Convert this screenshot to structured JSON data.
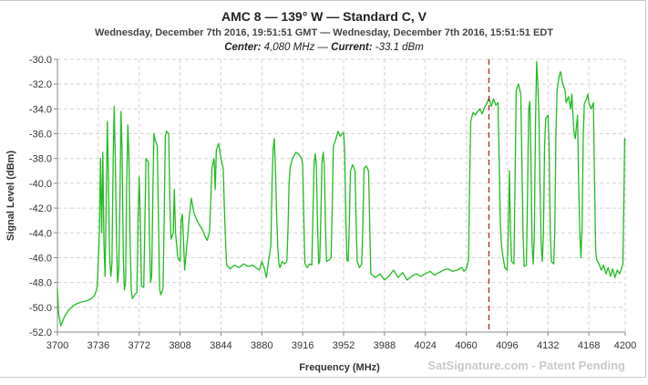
{
  "chart_data": {
    "type": "line",
    "title": "AMC 8 — 139° W — Standard C, V",
    "subtitle": "Wednesday, December 7th 2016, 19:51:51 GMT — Wednesday, December 7th 2016, 15:51:51 EDT",
    "info": {
      "center_label": "Center:",
      "center_value": "4,080 MHz",
      "separator": "—",
      "current_label": "Current:",
      "current_value": "-33.1 dBm"
    },
    "xlabel": "Frequency (MHz)",
    "ylabel": "Signal Level (dBm)",
    "xlim": [
      3700,
      4200
    ],
    "ylim": [
      -52.0,
      -30.0
    ],
    "x_ticks": [
      "3700",
      "3736",
      "3772",
      "3808",
      "3844",
      "3880",
      "3916",
      "3952",
      "3988",
      "4024",
      "4060",
      "4096",
      "4132",
      "4168",
      "4200"
    ],
    "x_tick_values": [
      3700,
      3736,
      3772,
      3808,
      3844,
      3880,
      3916,
      3952,
      3988,
      4024,
      4060,
      4096,
      4132,
      4168,
      4200
    ],
    "y_ticks": [
      "-30.0",
      "-32.0",
      "-34.0",
      "-36.0",
      "-38.0",
      "-40.0",
      "-42.0",
      "-44.0",
      "-46.0",
      "-48.0",
      "-50.0",
      "-52.0"
    ],
    "y_tick_values": [
      -30,
      -32,
      -34,
      -36,
      -38,
      -40,
      -42,
      -44,
      -46,
      -48,
      -50,
      -52
    ],
    "marker_x": 4080,
    "grid": true,
    "series": [
      {
        "name": "Signal Level",
        "color": "#22bb22",
        "points": [
          [
            3700,
            -48.5
          ],
          [
            3701,
            -50.5
          ],
          [
            3703,
            -51.5
          ],
          [
            3706,
            -50.8
          ],
          [
            3710,
            -50.2
          ],
          [
            3715,
            -49.8
          ],
          [
            3720,
            -49.6
          ],
          [
            3725,
            -49.5
          ],
          [
            3730,
            -49.3
          ],
          [
            3733,
            -49.0
          ],
          [
            3735,
            -48.4
          ],
          [
            3737,
            -44.0
          ],
          [
            3738,
            -38.0
          ],
          [
            3739,
            -44.0
          ],
          [
            3740,
            -37.5
          ],
          [
            3741,
            -45.0
          ],
          [
            3742,
            -47.5
          ],
          [
            3743,
            -41.0
          ],
          [
            3744,
            -35.0
          ],
          [
            3745,
            -40.5
          ],
          [
            3746,
            -46.0
          ],
          [
            3747,
            -47.5
          ],
          [
            3748,
            -46.5
          ],
          [
            3749,
            -38.5
          ],
          [
            3750,
            -33.8
          ],
          [
            3751,
            -38.0
          ],
          [
            3752,
            -44.5
          ],
          [
            3753,
            -48.0
          ],
          [
            3754,
            -47.0
          ],
          [
            3755,
            -42.0
          ],
          [
            3756,
            -34.2
          ],
          [
            3757,
            -37.5
          ],
          [
            3758,
            -46.0
          ],
          [
            3759,
            -48.6
          ],
          [
            3760,
            -48.0
          ],
          [
            3761,
            -40.0
          ],
          [
            3762,
            -35.3
          ],
          [
            3763,
            -38.0
          ],
          [
            3764,
            -44.5
          ],
          [
            3765,
            -48.5
          ],
          [
            3766,
            -49.3
          ],
          [
            3768,
            -49.0
          ],
          [
            3770,
            -48.8
          ],
          [
            3771,
            -43.0
          ],
          [
            3772,
            -39.5
          ],
          [
            3773,
            -43.0
          ],
          [
            3774,
            -48.3
          ],
          [
            3776,
            -48.4
          ],
          [
            3777,
            -43.5
          ],
          [
            3778,
            -38.0
          ],
          [
            3780,
            -38.3
          ],
          [
            3781,
            -44.0
          ],
          [
            3782,
            -48.0
          ],
          [
            3783,
            -47.5
          ],
          [
            3784,
            -41.0
          ],
          [
            3785,
            -36.0
          ],
          [
            3786,
            -36.5
          ],
          [
            3788,
            -37.0
          ],
          [
            3789,
            -43.0
          ],
          [
            3790,
            -48.5
          ],
          [
            3791,
            -49.0
          ],
          [
            3793,
            -48.5
          ],
          [
            3794,
            -43.0
          ],
          [
            3795,
            -36.2
          ],
          [
            3796,
            -35.8
          ],
          [
            3798,
            -36.0
          ],
          [
            3799,
            -41.5
          ],
          [
            3800,
            -44.5
          ],
          [
            3802,
            -44.0
          ],
          [
            3803,
            -40.5
          ],
          [
            3804,
            -44.0
          ],
          [
            3806,
            -46.0
          ],
          [
            3808,
            -46.3
          ],
          [
            3809,
            -43.0
          ],
          [
            3810,
            -42.5
          ],
          [
            3811,
            -44.5
          ],
          [
            3812,
            -47.0
          ],
          [
            3813,
            -46.0
          ],
          [
            3815,
            -44.0
          ],
          [
            3816,
            -42.8
          ],
          [
            3818,
            -41.2
          ],
          [
            3820,
            -42.3
          ],
          [
            3822,
            -42.8
          ],
          [
            3824,
            -43.2
          ],
          [
            3826,
            -43.5
          ],
          [
            3828,
            -43.8
          ],
          [
            3830,
            -44.3
          ],
          [
            3832,
            -44.6
          ],
          [
            3834,
            -43.8
          ],
          [
            3835,
            -41.5
          ],
          [
            3836,
            -38.8
          ],
          [
            3838,
            -38.0
          ],
          [
            3839,
            -40.5
          ],
          [
            3840,
            -37.3
          ],
          [
            3842,
            -36.8
          ],
          [
            3844,
            -38.0
          ],
          [
            3846,
            -38.8
          ],
          [
            3847,
            -42.0
          ],
          [
            3848,
            -44.5
          ],
          [
            3849,
            -46.6
          ],
          [
            3852,
            -46.9
          ],
          [
            3856,
            -46.6
          ],
          [
            3860,
            -46.8
          ],
          [
            3864,
            -46.5
          ],
          [
            3868,
            -46.7
          ],
          [
            3872,
            -46.6
          ],
          [
            3876,
            -46.9
          ],
          [
            3878,
            -47.0
          ],
          [
            3880,
            -46.3
          ],
          [
            3882,
            -46.8
          ],
          [
            3884,
            -47.6
          ],
          [
            3886,
            -46.2
          ],
          [
            3888,
            -45.0
          ],
          [
            3889,
            -40.0
          ],
          [
            3890,
            -37.2
          ],
          [
            3891,
            -36.4
          ],
          [
            3892,
            -38.8
          ],
          [
            3893,
            -42.5
          ],
          [
            3894,
            -45.0
          ],
          [
            3895,
            -46.5
          ],
          [
            3896,
            -46.8
          ],
          [
            3898,
            -46.3
          ],
          [
            3900,
            -46.5
          ],
          [
            3902,
            -46.3
          ],
          [
            3903,
            -44.0
          ],
          [
            3904,
            -40.0
          ],
          [
            3905,
            -38.7
          ],
          [
            3907,
            -38.0
          ],
          [
            3910,
            -37.5
          ],
          [
            3913,
            -37.7
          ],
          [
            3915,
            -38.0
          ],
          [
            3916,
            -38.5
          ],
          [
            3917,
            -43.0
          ],
          [
            3918,
            -46.5
          ],
          [
            3920,
            -46.8
          ],
          [
            3922,
            -46.5
          ],
          [
            3924,
            -46.6
          ],
          [
            3925,
            -42.5
          ],
          [
            3926,
            -38.5
          ],
          [
            3927,
            -37.6
          ],
          [
            3928,
            -38.5
          ],
          [
            3929,
            -43.0
          ],
          [
            3930,
            -46.5
          ],
          [
            3931,
            -46.3
          ],
          [
            3932,
            -42.5
          ],
          [
            3933,
            -38.3
          ],
          [
            3934,
            -37.5
          ],
          [
            3935,
            -38.5
          ],
          [
            3936,
            -43.5
          ],
          [
            3937,
            -46.3
          ],
          [
            3939,
            -46.2
          ],
          [
            3941,
            -46.0
          ],
          [
            3942,
            -42.0
          ],
          [
            3943,
            -37.0
          ],
          [
            3945,
            -36.5
          ],
          [
            3947,
            -35.8
          ],
          [
            3949,
            -36.2
          ],
          [
            3951,
            -36.0
          ],
          [
            3952,
            -35.9
          ],
          [
            3953,
            -37.5
          ],
          [
            3954,
            -43.0
          ],
          [
            3955,
            -46.2
          ],
          [
            3956,
            -46.3
          ],
          [
            3957,
            -43.5
          ],
          [
            3958,
            -39.0
          ],
          [
            3960,
            -38.5
          ],
          [
            3962,
            -39.0
          ],
          [
            3963,
            -43.0
          ],
          [
            3964,
            -46.3
          ],
          [
            3966,
            -46.8
          ],
          [
            3968,
            -46.5
          ],
          [
            3969,
            -43.0
          ],
          [
            3970,
            -38.8
          ],
          [
            3972,
            -38.6
          ],
          [
            3974,
            -39.0
          ],
          [
            3975,
            -43.5
          ],
          [
            3976,
            -47.3
          ],
          [
            3980,
            -47.6
          ],
          [
            3984,
            -47.3
          ],
          [
            3988,
            -47.8
          ],
          [
            3992,
            -47.5
          ],
          [
            3996,
            -47.0
          ],
          [
            4000,
            -47.6
          ],
          [
            4004,
            -47.2
          ],
          [
            4008,
            -47.8
          ],
          [
            4012,
            -47.5
          ],
          [
            4016,
            -47.3
          ],
          [
            4020,
            -47.5
          ],
          [
            4024,
            -47.3
          ],
          [
            4028,
            -47.1
          ],
          [
            4032,
            -47.4
          ],
          [
            4036,
            -47.2
          ],
          [
            4040,
            -47.0
          ],
          [
            4044,
            -46.9
          ],
          [
            4048,
            -47.1
          ],
          [
            4052,
            -47.0
          ],
          [
            4056,
            -46.8
          ],
          [
            4058,
            -47.1
          ],
          [
            4060,
            -46.9
          ],
          [
            4062,
            -46.2
          ],
          [
            4063,
            -40.0
          ],
          [
            4064,
            -35.0
          ],
          [
            4066,
            -34.3
          ],
          [
            4068,
            -34.5
          ],
          [
            4070,
            -34.2
          ],
          [
            4072,
            -34.0
          ],
          [
            4074,
            -34.4
          ],
          [
            4076,
            -33.9
          ],
          [
            4078,
            -33.6
          ],
          [
            4080,
            -33.1
          ],
          [
            4082,
            -33.8
          ],
          [
            4084,
            -33.2
          ],
          [
            4086,
            -33.7
          ],
          [
            4088,
            -33.5
          ],
          [
            4089,
            -38.0
          ],
          [
            4090,
            -43.0
          ],
          [
            4091,
            -45.0
          ],
          [
            4092,
            -45.7
          ],
          [
            4094,
            -46.8
          ],
          [
            4096,
            -47.0
          ],
          [
            4097,
            -44.0
          ],
          [
            4098,
            -39.0
          ],
          [
            4099,
            -44.0
          ],
          [
            4100,
            -46.3
          ],
          [
            4102,
            -46.5
          ],
          [
            4103,
            -40.0
          ],
          [
            4104,
            -32.5
          ],
          [
            4106,
            -32.0
          ],
          [
            4108,
            -32.8
          ],
          [
            4109,
            -38.0
          ],
          [
            4110,
            -44.0
          ],
          [
            4111,
            -46.7
          ],
          [
            4113,
            -46.6
          ],
          [
            4114,
            -41.0
          ],
          [
            4115,
            -34.0
          ],
          [
            4116,
            -33.4
          ],
          [
            4117,
            -38.0
          ],
          [
            4118,
            -45.0
          ],
          [
            4119,
            -46.5
          ],
          [
            4120,
            -44.0
          ],
          [
            4121,
            -35.0
          ],
          [
            4122,
            -30.2
          ],
          [
            4123,
            -32.0
          ],
          [
            4124,
            -34.5
          ],
          [
            4125,
            -40.0
          ],
          [
            4126,
            -45.0
          ],
          [
            4127,
            -46.3
          ],
          [
            4128,
            -44.0
          ],
          [
            4129,
            -37.0
          ],
          [
            4130,
            -34.8
          ],
          [
            4132,
            -34.5
          ],
          [
            4133,
            -37.0
          ],
          [
            4134,
            -44.0
          ],
          [
            4135,
            -46.3
          ],
          [
            4137,
            -46.5
          ],
          [
            4138,
            -44.0
          ],
          [
            4139,
            -36.0
          ],
          [
            4140,
            -32.5
          ],
          [
            4142,
            -31.3
          ],
          [
            4143,
            -31.0
          ],
          [
            4145,
            -32.0
          ],
          [
            4147,
            -32.5
          ],
          [
            4148,
            -33.5
          ],
          [
            4150,
            -33.0
          ],
          [
            4152,
            -34.0
          ],
          [
            4153,
            -32.8
          ],
          [
            4154,
            -34.5
          ],
          [
            4155,
            -36.0
          ],
          [
            4156,
            -36.4
          ],
          [
            4158,
            -34.5
          ],
          [
            4159,
            -40.0
          ],
          [
            4160,
            -44.0
          ],
          [
            4161,
            -46.0
          ],
          [
            4162,
            -43.5
          ],
          [
            4163,
            -36.5
          ],
          [
            4164,
            -33.6
          ],
          [
            4166,
            -33.2
          ],
          [
            4167,
            -32.8
          ],
          [
            4168,
            -33.5
          ],
          [
            4170,
            -34.0
          ],
          [
            4172,
            -33.5
          ],
          [
            4173,
            -40.0
          ],
          [
            4174,
            -45.5
          ],
          [
            4175,
            -46.2
          ],
          [
            4177,
            -46.5
          ],
          [
            4179,
            -47.0
          ],
          [
            4181,
            -46.6
          ],
          [
            4183,
            -47.3
          ],
          [
            4185,
            -46.8
          ],
          [
            4187,
            -47.5
          ],
          [
            4189,
            -46.9
          ],
          [
            4191,
            -47.6
          ],
          [
            4193,
            -47.0
          ],
          [
            4195,
            -47.3
          ],
          [
            4197,
            -46.8
          ],
          [
            4198,
            -46.5
          ],
          [
            4199,
            -40.0
          ],
          [
            4199.5,
            -36.4
          ],
          [
            4200,
            -36.6
          ]
        ]
      }
    ],
    "watermark": "SatSignature.com - Patent Pending",
    "colors": {
      "line": "#22bb22",
      "marker": "#bb2222",
      "grid": "#d4d4d4",
      "axis": "#888888"
    }
  }
}
